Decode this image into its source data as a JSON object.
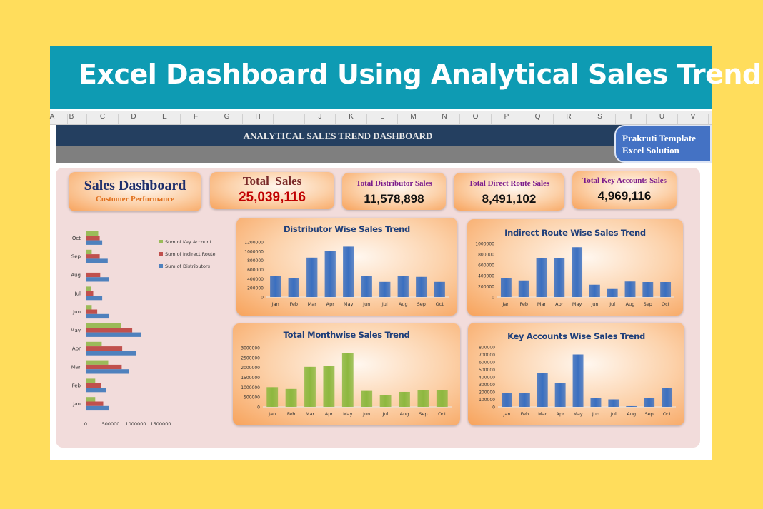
{
  "banner": {
    "title": "Excel Dashboard Using Analytical Sales Trend"
  },
  "columns": [
    "A",
    "B",
    "C",
    "D",
    "E",
    "F",
    "G",
    "H",
    "I",
    "J",
    "K",
    "L",
    "M",
    "N",
    "O",
    "P",
    "Q",
    "R",
    "S",
    "T",
    "U",
    "V"
  ],
  "header": {
    "title": "ANALYTICAL SALES TREND DASHBOARD",
    "brand_line1": "Prakruti Template",
    "brand_line2": "Excel Solution"
  },
  "kpis": {
    "dashboard": {
      "title": "Sales Dashboard",
      "subtitle": "Customer Performance"
    },
    "total_sales": {
      "label": "Total  Sales",
      "value": "25,039,116"
    },
    "distributor": {
      "label": "Total Distributor Sales",
      "value": "11,578,898"
    },
    "direct_route": {
      "label": "Total Direct Route Sales",
      "value": "8,491,102"
    },
    "key_accounts": {
      "label": "Total Key Accounts Sales",
      "value": "4,969,116"
    }
  },
  "colors": {
    "blue": "#4A7EC9",
    "red": "#C0504D",
    "green": "#9BBB59",
    "title": "#1F3F7A",
    "total_sales_value": "#C00000"
  },
  "chart_data": [
    {
      "id": "summary",
      "type": "bar",
      "orientation": "horizontal",
      "categories": [
        "Jan",
        "Feb",
        "Mar",
        "Apr",
        "May",
        "Jun",
        "Jul",
        "Aug",
        "Sep",
        "Oct"
      ],
      "series": [
        {
          "name": "Sum of Key Account",
          "color": "#9BBB59",
          "values": [
            190000,
            190000,
            450000,
            320000,
            700000,
            120000,
            100000,
            10000,
            120000,
            250000
          ]
        },
        {
          "name": "Sum of Indirect Route",
          "color": "#C0504D",
          "values": [
            350000,
            310000,
            720000,
            730000,
            930000,
            230000,
            150000,
            290000,
            280000,
            280000
          ]
        },
        {
          "name": "Sum of Distributors",
          "color": "#4F81BD",
          "values": [
            460000,
            410000,
            860000,
            1000000,
            1100000,
            460000,
            330000,
            460000,
            440000,
            330000
          ]
        }
      ],
      "xlim": [
        0,
        1500000
      ],
      "xticks": [
        0,
        500000,
        1000000,
        1500000
      ],
      "xtick_labels": [
        "0",
        "500000",
        "1000000",
        "1500000"
      ],
      "legend": "top-right"
    },
    {
      "id": "distributor",
      "type": "bar",
      "title": "Distributor Wise Sales Trend",
      "color": "#3A6FC0",
      "categories": [
        "Jan",
        "Feb",
        "Mar",
        "Apr",
        "May",
        "Jun",
        "Jul",
        "Aug",
        "Sep",
        "Oct"
      ],
      "values": [
        460000,
        410000,
        860000,
        1000000,
        1100000,
        460000,
        330000,
        460000,
        440000,
        330000
      ],
      "ylim": [
        0,
        1200000
      ],
      "yticks": [
        0,
        200000,
        400000,
        600000,
        800000,
        1000000,
        1200000
      ]
    },
    {
      "id": "indirect",
      "type": "bar",
      "title": "Indirect Route Wise Sales Trend",
      "color": "#3A6FC0",
      "categories": [
        "Jan",
        "Feb",
        "Mar",
        "Apr",
        "May",
        "Jun",
        "Jul",
        "Aug",
        "Sep",
        "Oct"
      ],
      "values": [
        350000,
        310000,
        720000,
        730000,
        930000,
        230000,
        150000,
        290000,
        280000,
        280000
      ],
      "ylim": [
        0,
        1000000
      ],
      "yticks": [
        0,
        200000,
        400000,
        600000,
        800000,
        1000000
      ]
    },
    {
      "id": "monthwise",
      "type": "bar",
      "title": "Total Monthwise Sales Trend",
      "color": "#8DB83F",
      "categories": [
        "Jan",
        "Feb",
        "Mar",
        "Apr",
        "May",
        "Jun",
        "Jul",
        "Aug",
        "Sep",
        "Oct"
      ],
      "values": [
        1000000,
        910000,
        2030000,
        2060000,
        2740000,
        810000,
        580000,
        760000,
        840000,
        860000
      ],
      "ylim": [
        0,
        3000000
      ],
      "yticks": [
        0,
        500000,
        1000000,
        1500000,
        2000000,
        2500000,
        3000000
      ]
    },
    {
      "id": "keyaccounts",
      "type": "bar",
      "title": "Key Accounts Wise Sales Trend",
      "color": "#3A6FC0",
      "categories": [
        "Jan",
        "Feb",
        "Mar",
        "Apr",
        "May",
        "Jun",
        "Jul",
        "Aug",
        "Sep",
        "Oct"
      ],
      "values": [
        190000,
        190000,
        450000,
        320000,
        700000,
        120000,
        100000,
        10000,
        120000,
        250000
      ],
      "ylim": [
        0,
        800000
      ],
      "yticks": [
        0,
        100000,
        200000,
        300000,
        400000,
        500000,
        600000,
        700000,
        800000
      ]
    }
  ]
}
